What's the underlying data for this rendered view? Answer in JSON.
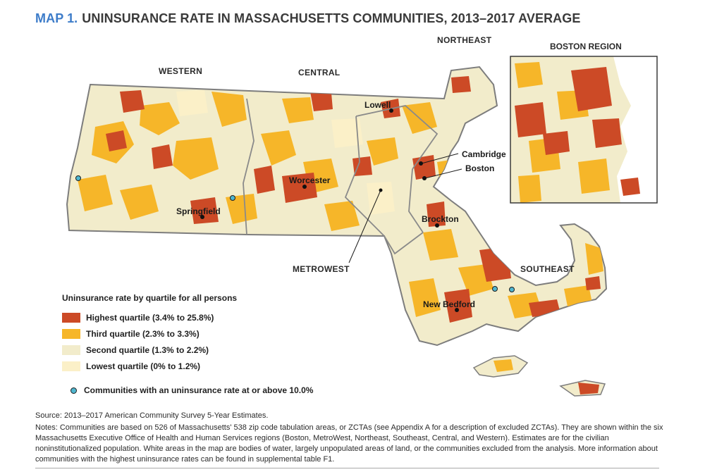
{
  "title": {
    "map_number": "MAP 1.",
    "text": "UNINSURANCE RATE IN MASSACHUSETTS COMMUNITIES, 2013–2017 AVERAGE"
  },
  "regions": {
    "western": "WESTERN",
    "central": "CENTRAL",
    "northeast": "NORTHEAST",
    "metrowest": "METROWEST",
    "southeast": "SOUTHEAST",
    "boston_region": "BOSTON REGION"
  },
  "cities": {
    "lowell": "Lowell",
    "cambridge": "Cambridge",
    "boston": "Boston",
    "worcester": "Worcester",
    "springfield": "Springfield",
    "brockton": "Brockton",
    "new_bedford": "New Bedford"
  },
  "legend": {
    "title": "Uninsurance rate by quartile for all persons",
    "items": [
      {
        "label": "Highest quartile (3.4% to 25.8%)",
        "color": "#cc4a26"
      },
      {
        "label": "Third quartile (2.3% to 3.3%)",
        "color": "#f6b629"
      },
      {
        "label": "Second quartile (1.3% to 2.2%)",
        "color": "#f2eccb"
      },
      {
        "label": "Lowest quartile (0% to 1.2%)",
        "color": "#fbf0c8"
      }
    ],
    "dot_label": "Communities with an uninsurance rate at or above 10.0%",
    "dot_color": "#4fb6cf"
  },
  "source": "Source: 2013–2017 American Community Survey 5-Year Estimates.",
  "notes": "Notes: Communities are based on 526 of Massachusetts' 538 zip code tabulation areas, or ZCTAs (see Appendix A for a description of excluded ZCTAs). They are shown within the six Massachusetts Executive Office of Health and Human Services regions (Boston, MetroWest, Northeast, Southeast, Central, and Western). Estimates are for the civilian noninstitutionalized population. White areas in the map are bodies of water, largely unpopulated areas of land, or the communities excluded from the analysis. More information about communities with the highest uninsurance rates can be found in supplemental table F1."
}
